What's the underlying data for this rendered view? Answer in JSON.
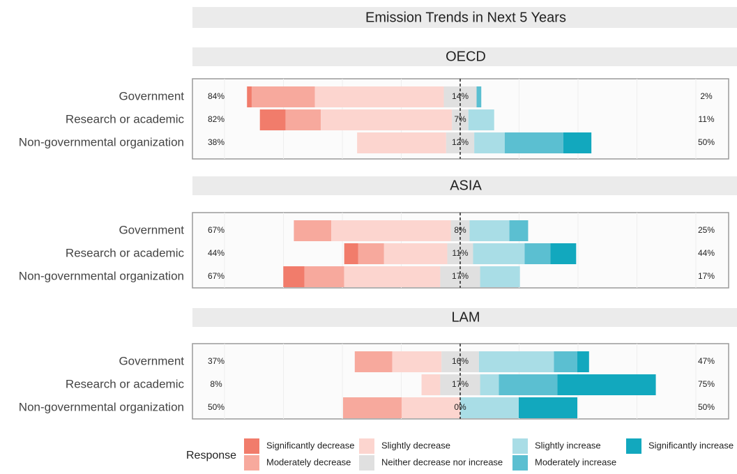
{
  "chart_data": {
    "type": "diverging_bar",
    "title": "Emission Trends in Next 5 Years",
    "legend_title": "Response",
    "categories": [
      "Government",
      "Research or academic",
      "Non-governmental organization"
    ],
    "responses": [
      {
        "name": "Significantly decrease",
        "color": "#f17c6b"
      },
      {
        "name": "Moderately decrease",
        "color": "#f7a99d"
      },
      {
        "name": "Slightly decrease",
        "color": "#fcd5cf"
      },
      {
        "name": "Neither decrease nor increase",
        "color": "#e0e0e0"
      },
      {
        "name": "Slightly increase",
        "color": "#a9dde6"
      },
      {
        "name": "Moderately increase",
        "color": "#5bbfd1"
      },
      {
        "name": "Significantly increase",
        "color": "#12a8be"
      }
    ],
    "panels": [
      {
        "name": "OECD",
        "values": [
          [
            2,
            27,
            55,
            14,
            0,
            2,
            0
          ],
          [
            11,
            15,
            56,
            7,
            11,
            0,
            0
          ],
          [
            0,
            0,
            38,
            12,
            13,
            25,
            12
          ]
        ],
        "labels": [
          [
            "84%",
            "14%",
            "2%"
          ],
          [
            "82%",
            "7%",
            "11%"
          ],
          [
            "38%",
            "12%",
            "50%"
          ]
        ]
      },
      {
        "name": "ASIA",
        "values": [
          [
            0,
            16,
            51,
            8,
            17,
            8,
            0
          ],
          [
            6,
            11,
            27,
            11,
            22,
            11,
            11
          ],
          [
            9,
            17,
            41,
            17,
            17,
            0,
            0
          ]
        ],
        "labels": [
          [
            "67%",
            "8%",
            "25%"
          ],
          [
            "44%",
            "11%",
            "44%"
          ],
          [
            "67%",
            "17%",
            "17%"
          ]
        ]
      },
      {
        "name": "LAM",
        "values": [
          [
            0,
            16,
            21,
            16,
            32,
            10,
            5
          ],
          [
            0,
            0,
            8,
            17,
            8,
            25,
            42
          ],
          [
            0,
            25,
            25,
            0,
            25,
            0,
            25
          ]
        ],
        "labels": [
          [
            "37%",
            "16%",
            "47%"
          ],
          [
            "8%",
            "17%",
            "75%"
          ],
          [
            "50%",
            "0%",
            "50%"
          ]
        ]
      }
    ]
  }
}
